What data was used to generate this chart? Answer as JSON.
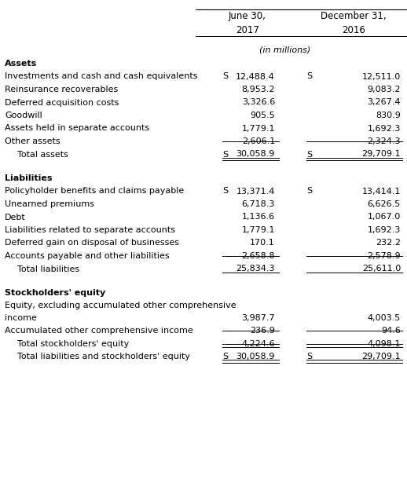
{
  "header1": "June 30,",
  "header2": "December 31,",
  "subheader1": "2017",
  "subheader2": "2016",
  "unit_label": "(in millions)",
  "sections": [
    {
      "title": "Assets",
      "rows": [
        {
          "label": "Investments and cash and cash equivalents",
          "dollar1": true,
          "val1": "12,488.4",
          "dollar2": true,
          "val2": "12,511.0",
          "total": false,
          "double_line": false,
          "indent": false
        },
        {
          "label": "Reinsurance recoverables",
          "dollar1": false,
          "val1": "8,953.2",
          "dollar2": false,
          "val2": "9,083.2",
          "total": false,
          "double_line": false,
          "indent": false
        },
        {
          "label": "Deferred acquisition costs",
          "dollar1": false,
          "val1": "3,326.6",
          "dollar2": false,
          "val2": "3,267.4",
          "total": false,
          "double_line": false,
          "indent": false
        },
        {
          "label": "Goodwill",
          "dollar1": false,
          "val1": "905.5",
          "dollar2": false,
          "val2": "830.9",
          "total": false,
          "double_line": false,
          "indent": false
        },
        {
          "label": "Assets held in separate accounts",
          "dollar1": false,
          "val1": "1,779.1",
          "dollar2": false,
          "val2": "1,692.3",
          "total": false,
          "double_line": false,
          "indent": false
        },
        {
          "label": "Other assets",
          "dollar1": false,
          "val1": "2,606.1",
          "dollar2": false,
          "val2": "2,324.3",
          "total": false,
          "double_line": false,
          "indent": false
        },
        {
          "label": "Total assets",
          "dollar1": true,
          "val1": "30,058.9",
          "dollar2": true,
          "val2": "29,709.1",
          "total": true,
          "double_line": true,
          "indent": true
        }
      ]
    },
    {
      "title": "Liabilities",
      "rows": [
        {
          "label": "Policyholder benefits and claims payable",
          "dollar1": true,
          "val1": "13,371.4",
          "dollar2": true,
          "val2": "13,414.1",
          "total": false,
          "double_line": false,
          "indent": false
        },
        {
          "label": "Unearned premiums",
          "dollar1": false,
          "val1": "6,718.3",
          "dollar2": false,
          "val2": "6,626.5",
          "total": false,
          "double_line": false,
          "indent": false
        },
        {
          "label": "Debt",
          "dollar1": false,
          "val1": "1,136.6",
          "dollar2": false,
          "val2": "1,067.0",
          "total": false,
          "double_line": false,
          "indent": false
        },
        {
          "label": "Liabilities related to separate accounts",
          "dollar1": false,
          "val1": "1,779.1",
          "dollar2": false,
          "val2": "1,692.3",
          "total": false,
          "double_line": false,
          "indent": false
        },
        {
          "label": "Deferred gain on disposal of businesses",
          "dollar1": false,
          "val1": "170.1",
          "dollar2": false,
          "val2": "232.2",
          "total": false,
          "double_line": false,
          "indent": false
        },
        {
          "label": "Accounts payable and other liabilities",
          "dollar1": false,
          "val1": "2,658.8",
          "dollar2": false,
          "val2": "2,578.9",
          "total": false,
          "double_line": false,
          "indent": false
        },
        {
          "label": "Total liabilities",
          "dollar1": false,
          "val1": "25,834.3",
          "dollar2": false,
          "val2": "25,611.0",
          "total": true,
          "double_line": false,
          "indent": true
        }
      ]
    },
    {
      "title": "Stockholders' equity",
      "rows": [
        {
          "label": "Equity, excluding accumulated other comprehensive\nincome",
          "dollar1": false,
          "val1": "3,987.7",
          "dollar2": false,
          "val2": "4,003.5",
          "total": false,
          "double_line": false,
          "indent": false,
          "multiline": true
        },
        {
          "label": "Accumulated other comprehensive income",
          "dollar1": false,
          "val1": "236.9",
          "dollar2": false,
          "val2": "94.6",
          "total": false,
          "double_line": false,
          "indent": false
        },
        {
          "label": "Total stockholders' equity",
          "dollar1": false,
          "val1": "4,224.6",
          "dollar2": false,
          "val2": "4,098.1",
          "total": true,
          "double_line": false,
          "indent": true
        },
        {
          "label": "Total liabilities and stockholders' equity",
          "dollar1": true,
          "val1": "30,058.9",
          "dollar2": true,
          "val2": "29,709.1",
          "total": true,
          "double_line": true,
          "indent": true
        }
      ]
    }
  ],
  "bg_color": "#ffffff",
  "text_color": "#000000",
  "line_color": "#000000"
}
